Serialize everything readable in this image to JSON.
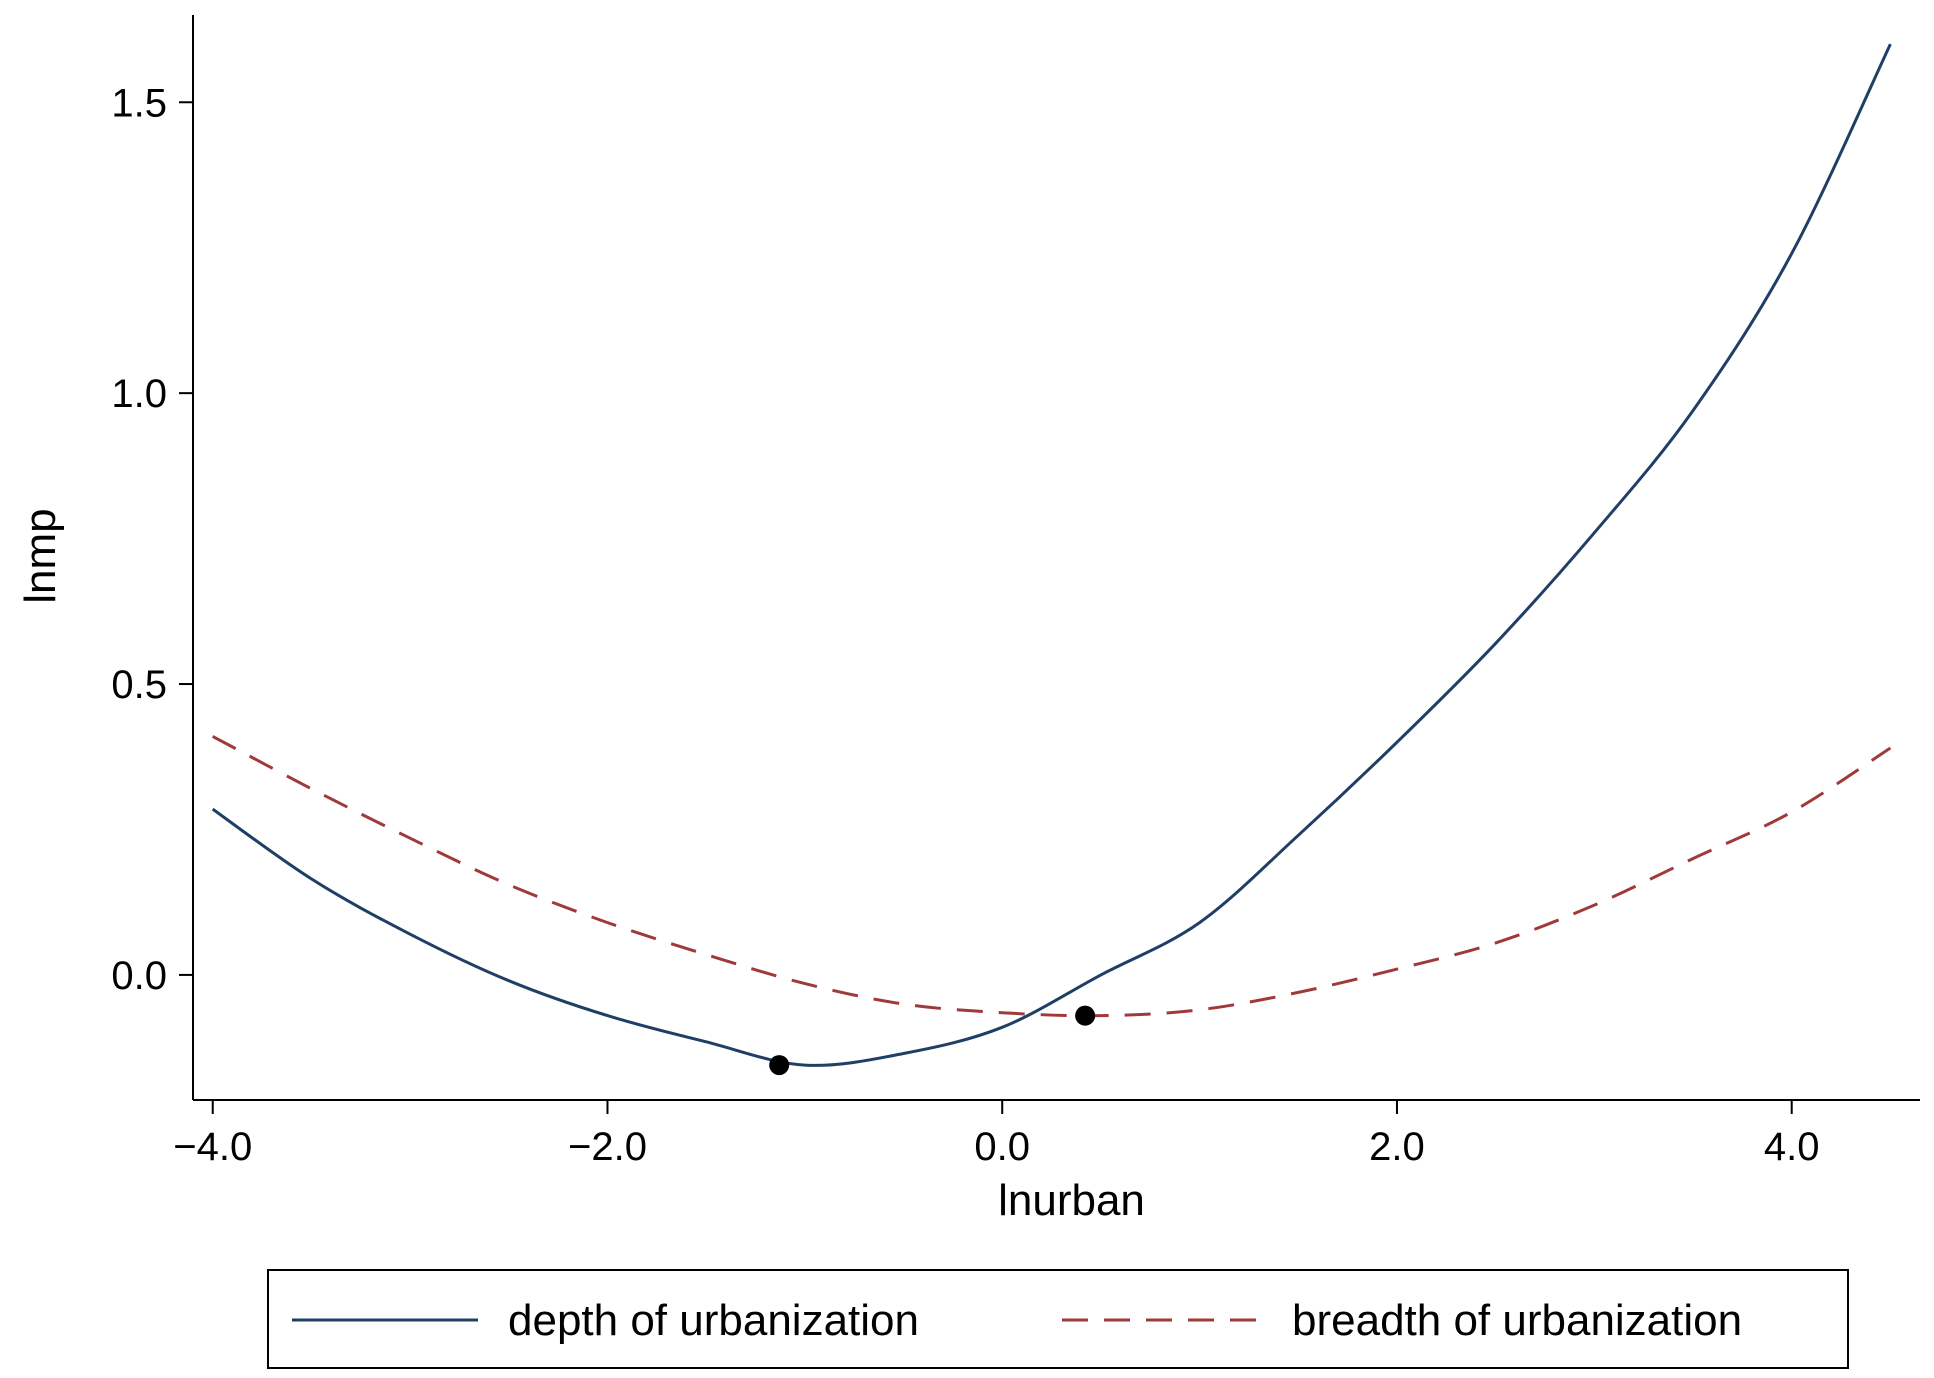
{
  "chart_data": {
    "type": "line",
    "title": "",
    "xlabel": "lnurban",
    "ylabel": "lnmp",
    "xlim": [
      -4.1,
      4.65
    ],
    "ylim": [
      -0.215,
      1.65
    ],
    "x_ticks": [
      -4.0,
      -2.0,
      0.0,
      2.0,
      4.0
    ],
    "x_tick_labels": [
      "−4.0",
      "−2.0",
      "0.0",
      "2.0",
      "4.0"
    ],
    "y_ticks": [
      0.0,
      0.5,
      1.0,
      1.5
    ],
    "y_tick_labels": [
      "0.0",
      "0.5",
      "1.0",
      "1.5"
    ],
    "grid": false,
    "legend_position": "bottom",
    "series": [
      {
        "name": "depth of urbanization",
        "color": "#1f3f66",
        "style": "solid",
        "x": [
          -4.0,
          -3.5,
          -3.0,
          -2.5,
          -2.0,
          -1.5,
          -1.0,
          -0.5,
          0.0,
          0.5,
          1.0,
          1.5,
          2.0,
          2.5,
          3.0,
          3.5,
          4.0,
          4.5
        ],
        "y": [
          0.285,
          0.165,
          0.07,
          -0.01,
          -0.07,
          -0.115,
          -0.155,
          -0.135,
          -0.09,
          0.0,
          0.09,
          0.24,
          0.4,
          0.57,
          0.76,
          0.97,
          1.24,
          1.6
        ],
        "min_point": {
          "x": -1.13,
          "y": -0.155
        }
      },
      {
        "name": "breadth of urbanization",
        "color": "#a03a3a",
        "style": "dashed",
        "x": [
          -4.0,
          -3.5,
          -3.0,
          -2.5,
          -2.0,
          -1.5,
          -1.0,
          -0.5,
          0.0,
          0.5,
          1.0,
          1.5,
          2.0,
          2.5,
          3.0,
          3.5,
          4.0,
          4.5
        ],
        "y": [
          0.41,
          0.32,
          0.235,
          0.155,
          0.09,
          0.035,
          -0.015,
          -0.05,
          -0.065,
          -0.07,
          -0.06,
          -0.03,
          0.01,
          0.055,
          0.12,
          0.2,
          0.28,
          0.39
        ],
        "min_point": {
          "x": 0.42,
          "y": -0.07
        }
      }
    ]
  }
}
